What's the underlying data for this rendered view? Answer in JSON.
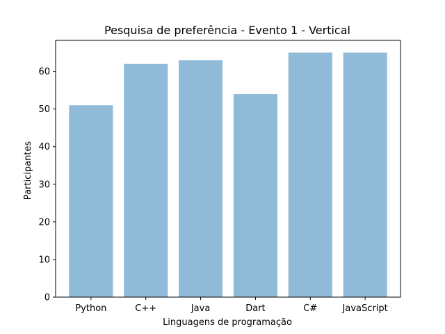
{
  "chart_data": {
    "type": "bar",
    "title": "Pesquisa de preferência - Evento 1 - Vertical",
    "xlabel": "Linguagens de programação",
    "ylabel": "Participantes",
    "categories": [
      "Python",
      "C++",
      "Java",
      "Dart",
      "C#",
      "JavaScript"
    ],
    "values": [
      51,
      62,
      63,
      54,
      65,
      65
    ],
    "ylim": [
      0,
      68.25
    ],
    "yticks": [
      0,
      10,
      20,
      30,
      40,
      50,
      60
    ],
    "grid": false,
    "bar_color": "#8fbbd9"
  }
}
